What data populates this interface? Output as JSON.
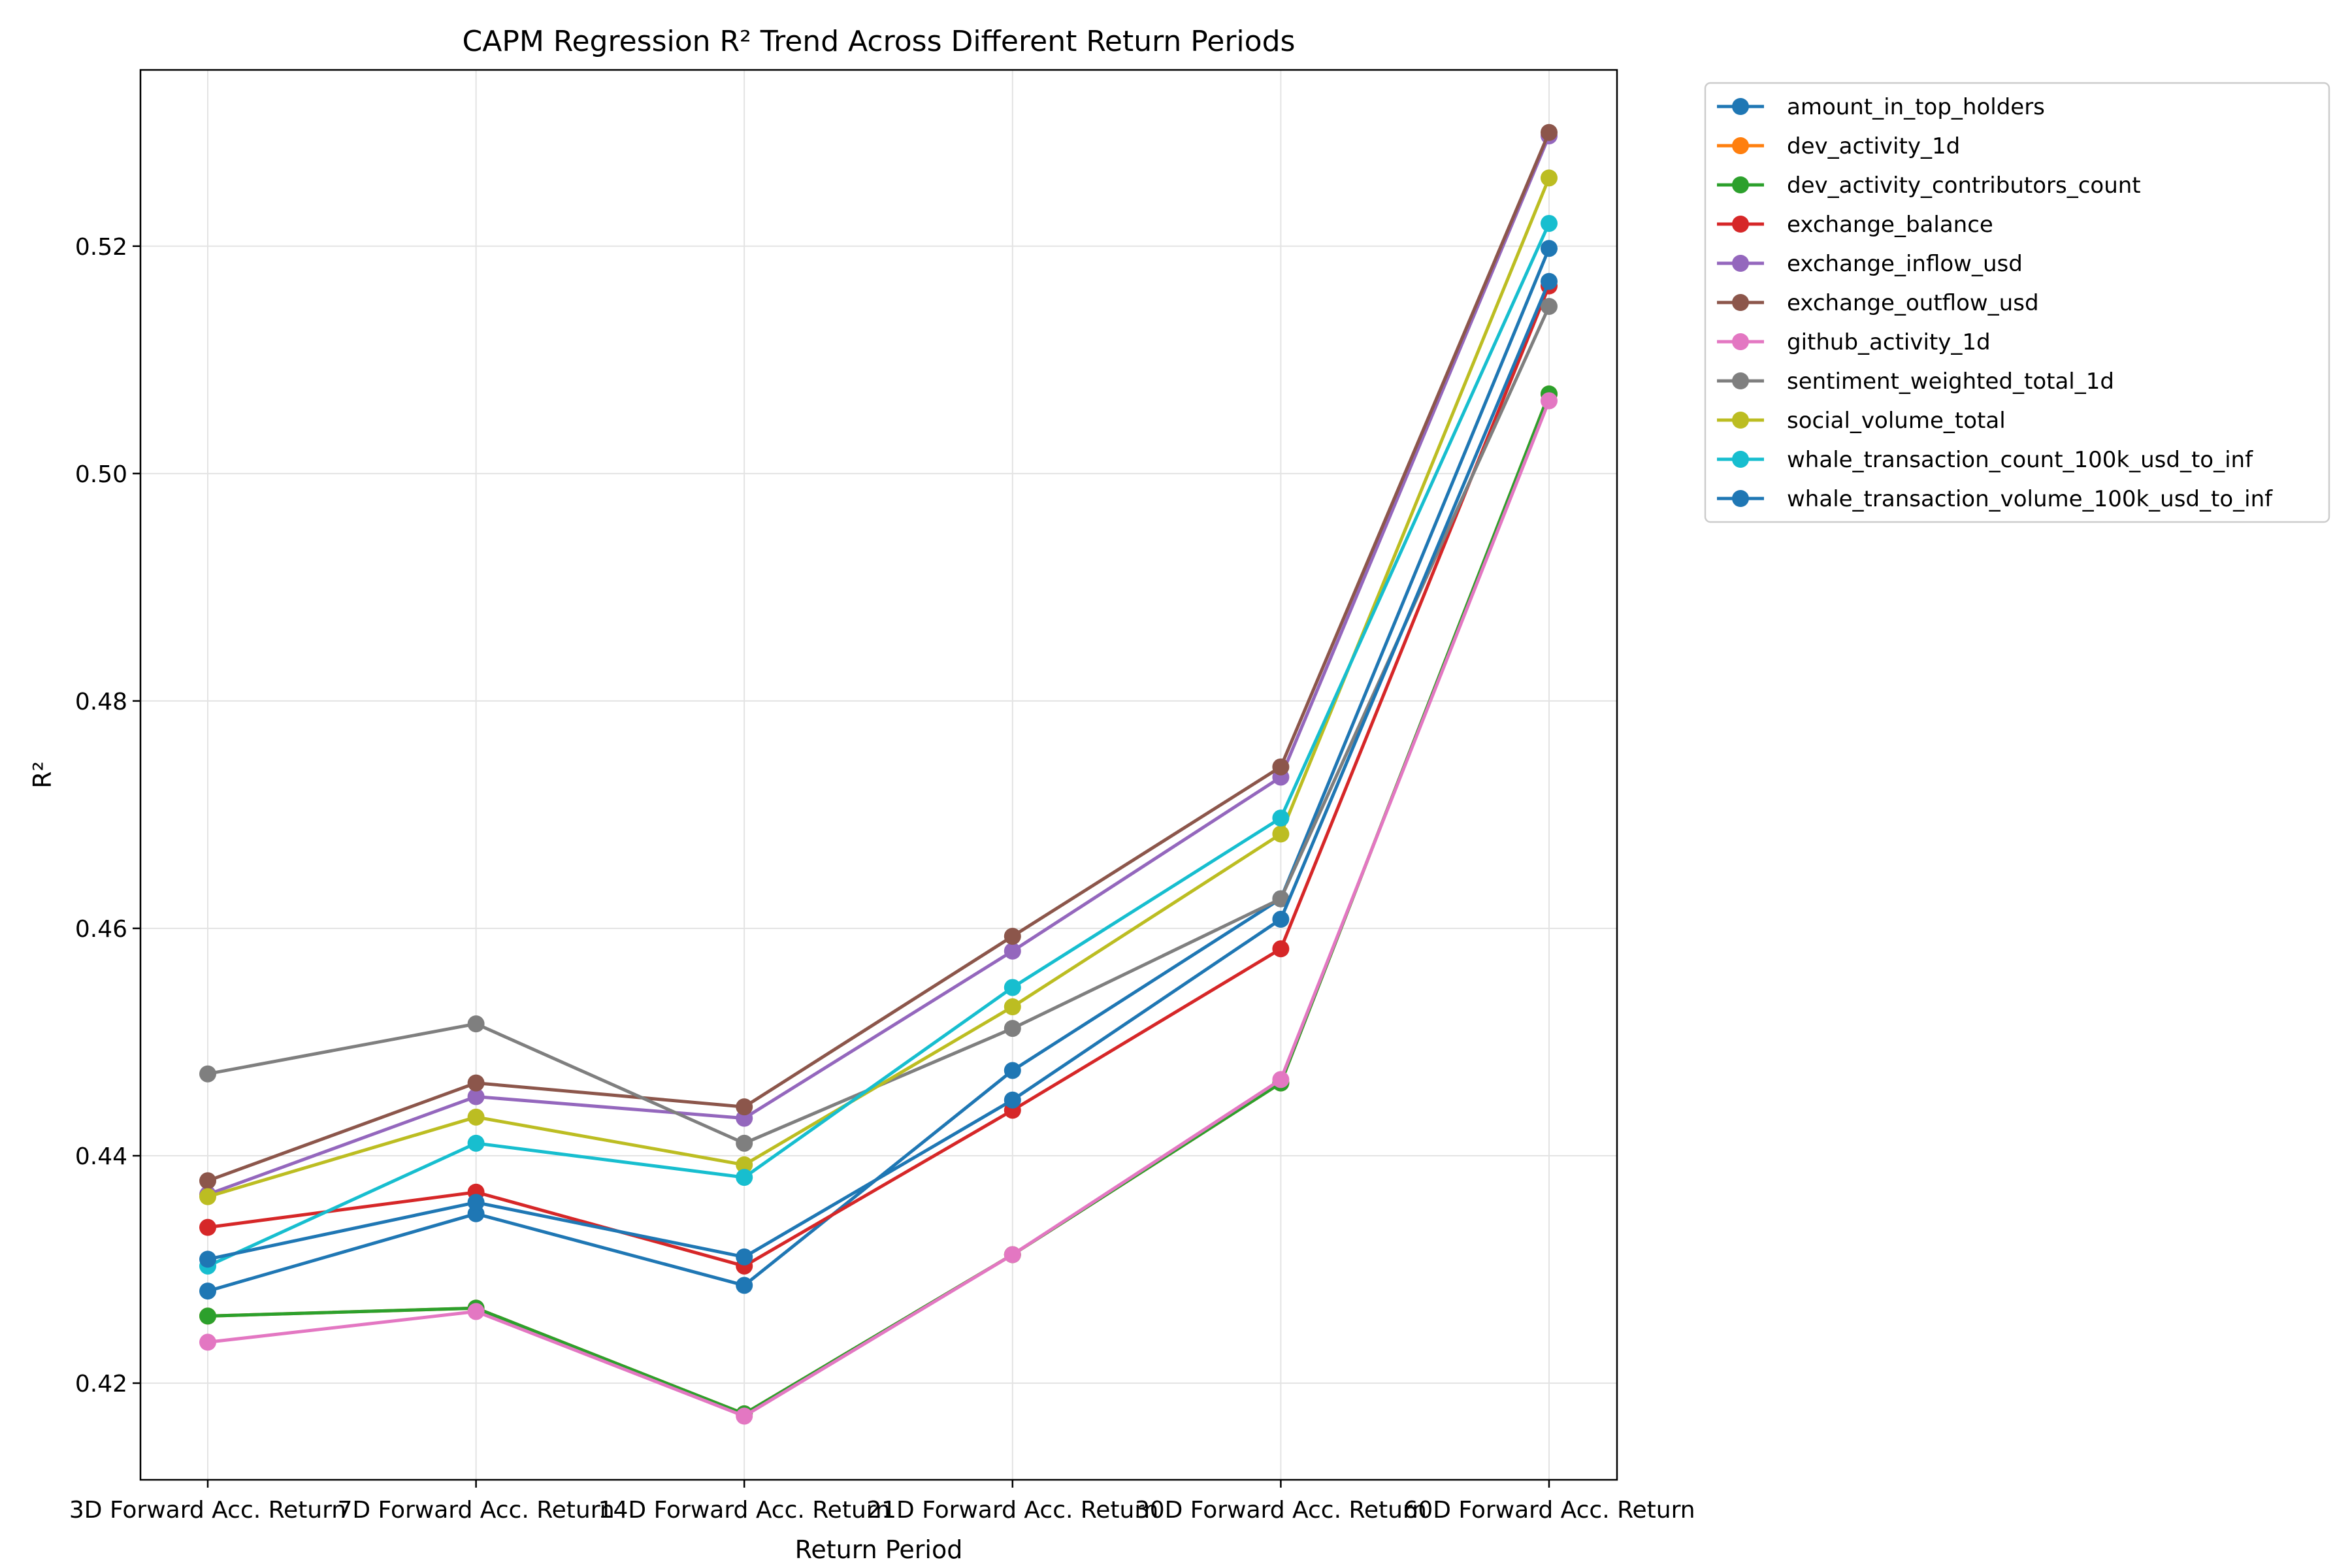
{
  "chart_data": {
    "type": "line",
    "title": "CAPM Regression R² Trend Across Different Return Periods",
    "xlabel": "Return Period",
    "ylabel": "R²",
    "categories": [
      "3D Forward Acc. Return",
      "7D Forward Acc. Return",
      "14D Forward Acc. Return",
      "21D Forward Acc. Return",
      "30D Forward Acc. Return",
      "60D Forward Acc. Return"
    ],
    "ylim": [
      0.4115,
      0.5355
    ],
    "yticks": [
      0.42,
      0.44,
      0.46,
      0.48,
      0.5,
      0.52
    ],
    "ytick_labels": [
      "0.42",
      "0.44",
      "0.46",
      "0.48",
      "0.50",
      "0.52"
    ],
    "grid": true,
    "legend_position": "outside-top-right",
    "series": [
      {
        "name": "amount_in_top_holders",
        "color": "#1f77b4",
        "values": [
          0.4281,
          0.4349,
          0.4286,
          0.4475,
          0.4626,
          0.5198
        ]
      },
      {
        "name": "dev_activity_1d",
        "color": "#ff7f0e",
        "values": [
          0.4259,
          0.4266,
          0.4173,
          0.4313,
          0.4464,
          0.507
        ]
      },
      {
        "name": "dev_activity_contributors_count",
        "color": "#2ca02c",
        "values": [
          0.4259,
          0.4266,
          0.4173,
          0.4313,
          0.4464,
          0.507
        ]
      },
      {
        "name": "exchange_balance",
        "color": "#d62728",
        "values": [
          0.4337,
          0.4368,
          0.4303,
          0.444,
          0.4582,
          0.5165
        ]
      },
      {
        "name": "exchange_inflow_usd",
        "color": "#9467bd",
        "values": [
          0.4366,
          0.4452,
          0.4433,
          0.458,
          0.4733,
          0.5297
        ]
      },
      {
        "name": "exchange_outflow_usd",
        "color": "#8c564b",
        "values": [
          0.4378,
          0.4464,
          0.4443,
          0.4593,
          0.4742,
          0.53
        ]
      },
      {
        "name": "github_activity_1d",
        "color": "#e377c2",
        "values": [
          0.4236,
          0.4263,
          0.4171,
          0.4313,
          0.4467,
          0.5064
        ]
      },
      {
        "name": "sentiment_weighted_total_1d",
        "color": "#7f7f7f",
        "values": [
          0.4472,
          0.4516,
          0.4411,
          0.4512,
          0.4626,
          0.5147
        ]
      },
      {
        "name": "social_volume_total",
        "color": "#bcbd22",
        "values": [
          0.4364,
          0.4434,
          0.4392,
          0.4531,
          0.4683,
          0.526
        ]
      },
      {
        "name": "whale_transaction_count_100k_usd_to_inf",
        "color": "#17becf",
        "values": [
          0.4303,
          0.4411,
          0.4381,
          0.4548,
          0.4697,
          0.522
        ]
      },
      {
        "name": "whale_transaction_volume_100k_usd_to_inf",
        "color": "#1f77b4",
        "values": [
          0.4309,
          0.4359,
          0.4311,
          0.4449,
          0.4608,
          0.5169
        ]
      }
    ]
  }
}
